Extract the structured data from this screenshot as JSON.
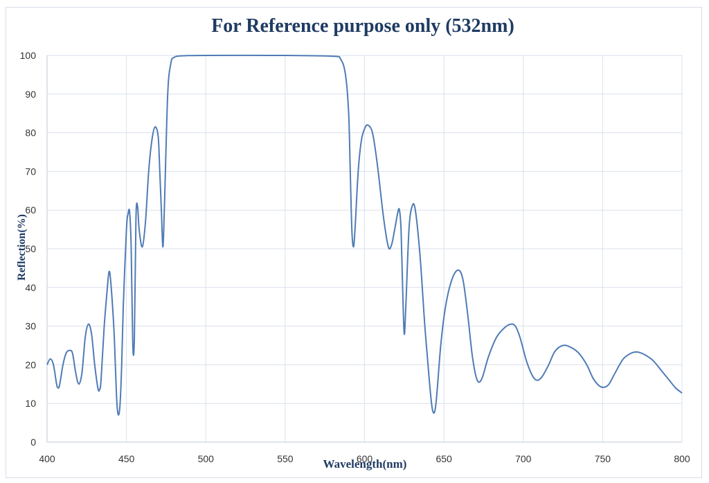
{
  "chart_data": {
    "type": "line",
    "title": "For Reference purpose only (532nm)",
    "xlabel": "Wavelength(nm)",
    "ylabel": "Reflection(%)",
    "xlim": [
      400,
      800
    ],
    "ylim": [
      0,
      100
    ],
    "x_ticks": [
      400,
      450,
      500,
      550,
      600,
      650,
      700,
      750,
      800
    ],
    "y_ticks": [
      0,
      10,
      20,
      30,
      40,
      50,
      60,
      70,
      80,
      90,
      100
    ],
    "grid": true,
    "line_color": "#4f7bb5",
    "series": [
      {
        "points": [
          [
            400,
            20
          ],
          [
            402,
            21.5
          ],
          [
            404,
            20
          ],
          [
            406,
            15
          ],
          [
            407,
            14
          ],
          [
            408,
            15
          ],
          [
            410,
            20
          ],
          [
            412,
            23
          ],
          [
            414,
            23.7
          ],
          [
            416,
            23
          ],
          [
            418,
            18
          ],
          [
            420,
            15
          ],
          [
            422,
            18
          ],
          [
            424,
            27
          ],
          [
            426,
            30.5
          ],
          [
            428,
            28
          ],
          [
            430,
            20
          ],
          [
            432,
            14
          ],
          [
            433,
            13.5
          ],
          [
            434,
            16
          ],
          [
            436,
            30
          ],
          [
            438,
            40
          ],
          [
            439,
            44
          ],
          [
            440,
            42
          ],
          [
            442,
            30
          ],
          [
            443,
            20
          ],
          [
            444,
            10
          ],
          [
            445,
            7
          ],
          [
            446,
            10
          ],
          [
            447,
            20
          ],
          [
            448,
            35
          ],
          [
            450,
            55
          ],
          [
            451,
            59
          ],
          [
            452,
            59.5
          ],
          [
            453,
            50
          ],
          [
            454,
            25
          ],
          [
            455,
            27
          ],
          [
            456,
            58
          ],
          [
            457,
            61
          ],
          [
            458,
            55
          ],
          [
            460,
            50.5
          ],
          [
            462,
            57
          ],
          [
            464,
            70
          ],
          [
            466,
            78
          ],
          [
            468,
            81.5
          ],
          [
            470,
            79
          ],
          [
            471,
            70
          ],
          [
            472,
            60
          ],
          [
            473,
            50.5
          ],
          [
            474,
            62
          ],
          [
            476,
            90
          ],
          [
            478,
            98
          ],
          [
            480,
            99.5
          ],
          [
            485,
            99.9
          ],
          [
            500,
            100
          ],
          [
            550,
            100
          ],
          [
            580,
            99.8
          ],
          [
            585,
            99
          ],
          [
            588,
            95
          ],
          [
            590,
            85
          ],
          [
            591,
            70
          ],
          [
            592,
            55
          ],
          [
            593,
            50.5
          ],
          [
            594,
            55
          ],
          [
            596,
            70
          ],
          [
            598,
            78
          ],
          [
            600,
            81
          ],
          [
            602,
            82
          ],
          [
            605,
            80
          ],
          [
            608,
            72
          ],
          [
            612,
            58
          ],
          [
            615,
            50.5
          ],
          [
            617,
            51
          ],
          [
            619,
            55
          ],
          [
            621,
            59.5
          ],
          [
            622,
            60
          ],
          [
            623,
            55
          ],
          [
            624,
            40
          ],
          [
            625,
            28
          ],
          [
            626,
            35
          ],
          [
            628,
            55
          ],
          [
            630,
            61
          ],
          [
            632,
            60
          ],
          [
            635,
            48
          ],
          [
            638,
            30
          ],
          [
            641,
            15
          ],
          [
            643,
            8
          ],
          [
            645,
            10
          ],
          [
            648,
            25
          ],
          [
            651,
            35
          ],
          [
            655,
            42
          ],
          [
            659,
            44.5
          ],
          [
            662,
            42
          ],
          [
            665,
            33
          ],
          [
            668,
            22
          ],
          [
            671,
            16
          ],
          [
            674,
            16.5
          ],
          [
            678,
            22
          ],
          [
            683,
            27
          ],
          [
            688,
            29.5
          ],
          [
            692,
            30.5
          ],
          [
            695,
            30
          ],
          [
            698,
            27
          ],
          [
            702,
            21
          ],
          [
            706,
            17
          ],
          [
            709,
            16
          ],
          [
            712,
            17
          ],
          [
            716,
            20
          ],
          [
            720,
            23.5
          ],
          [
            725,
            25
          ],
          [
            730,
            24.5
          ],
          [
            735,
            23
          ],
          [
            740,
            20
          ],
          [
            744,
            16.5
          ],
          [
            748,
            14.5
          ],
          [
            751,
            14.2
          ],
          [
            754,
            15
          ],
          [
            758,
            18
          ],
          [
            763,
            21.5
          ],
          [
            768,
            23
          ],
          [
            772,
            23.3
          ],
          [
            777,
            22.5
          ],
          [
            782,
            21
          ],
          [
            787,
            18.5
          ],
          [
            792,
            16
          ],
          [
            796,
            14
          ],
          [
            800,
            12.7
          ]
        ]
      }
    ]
  }
}
